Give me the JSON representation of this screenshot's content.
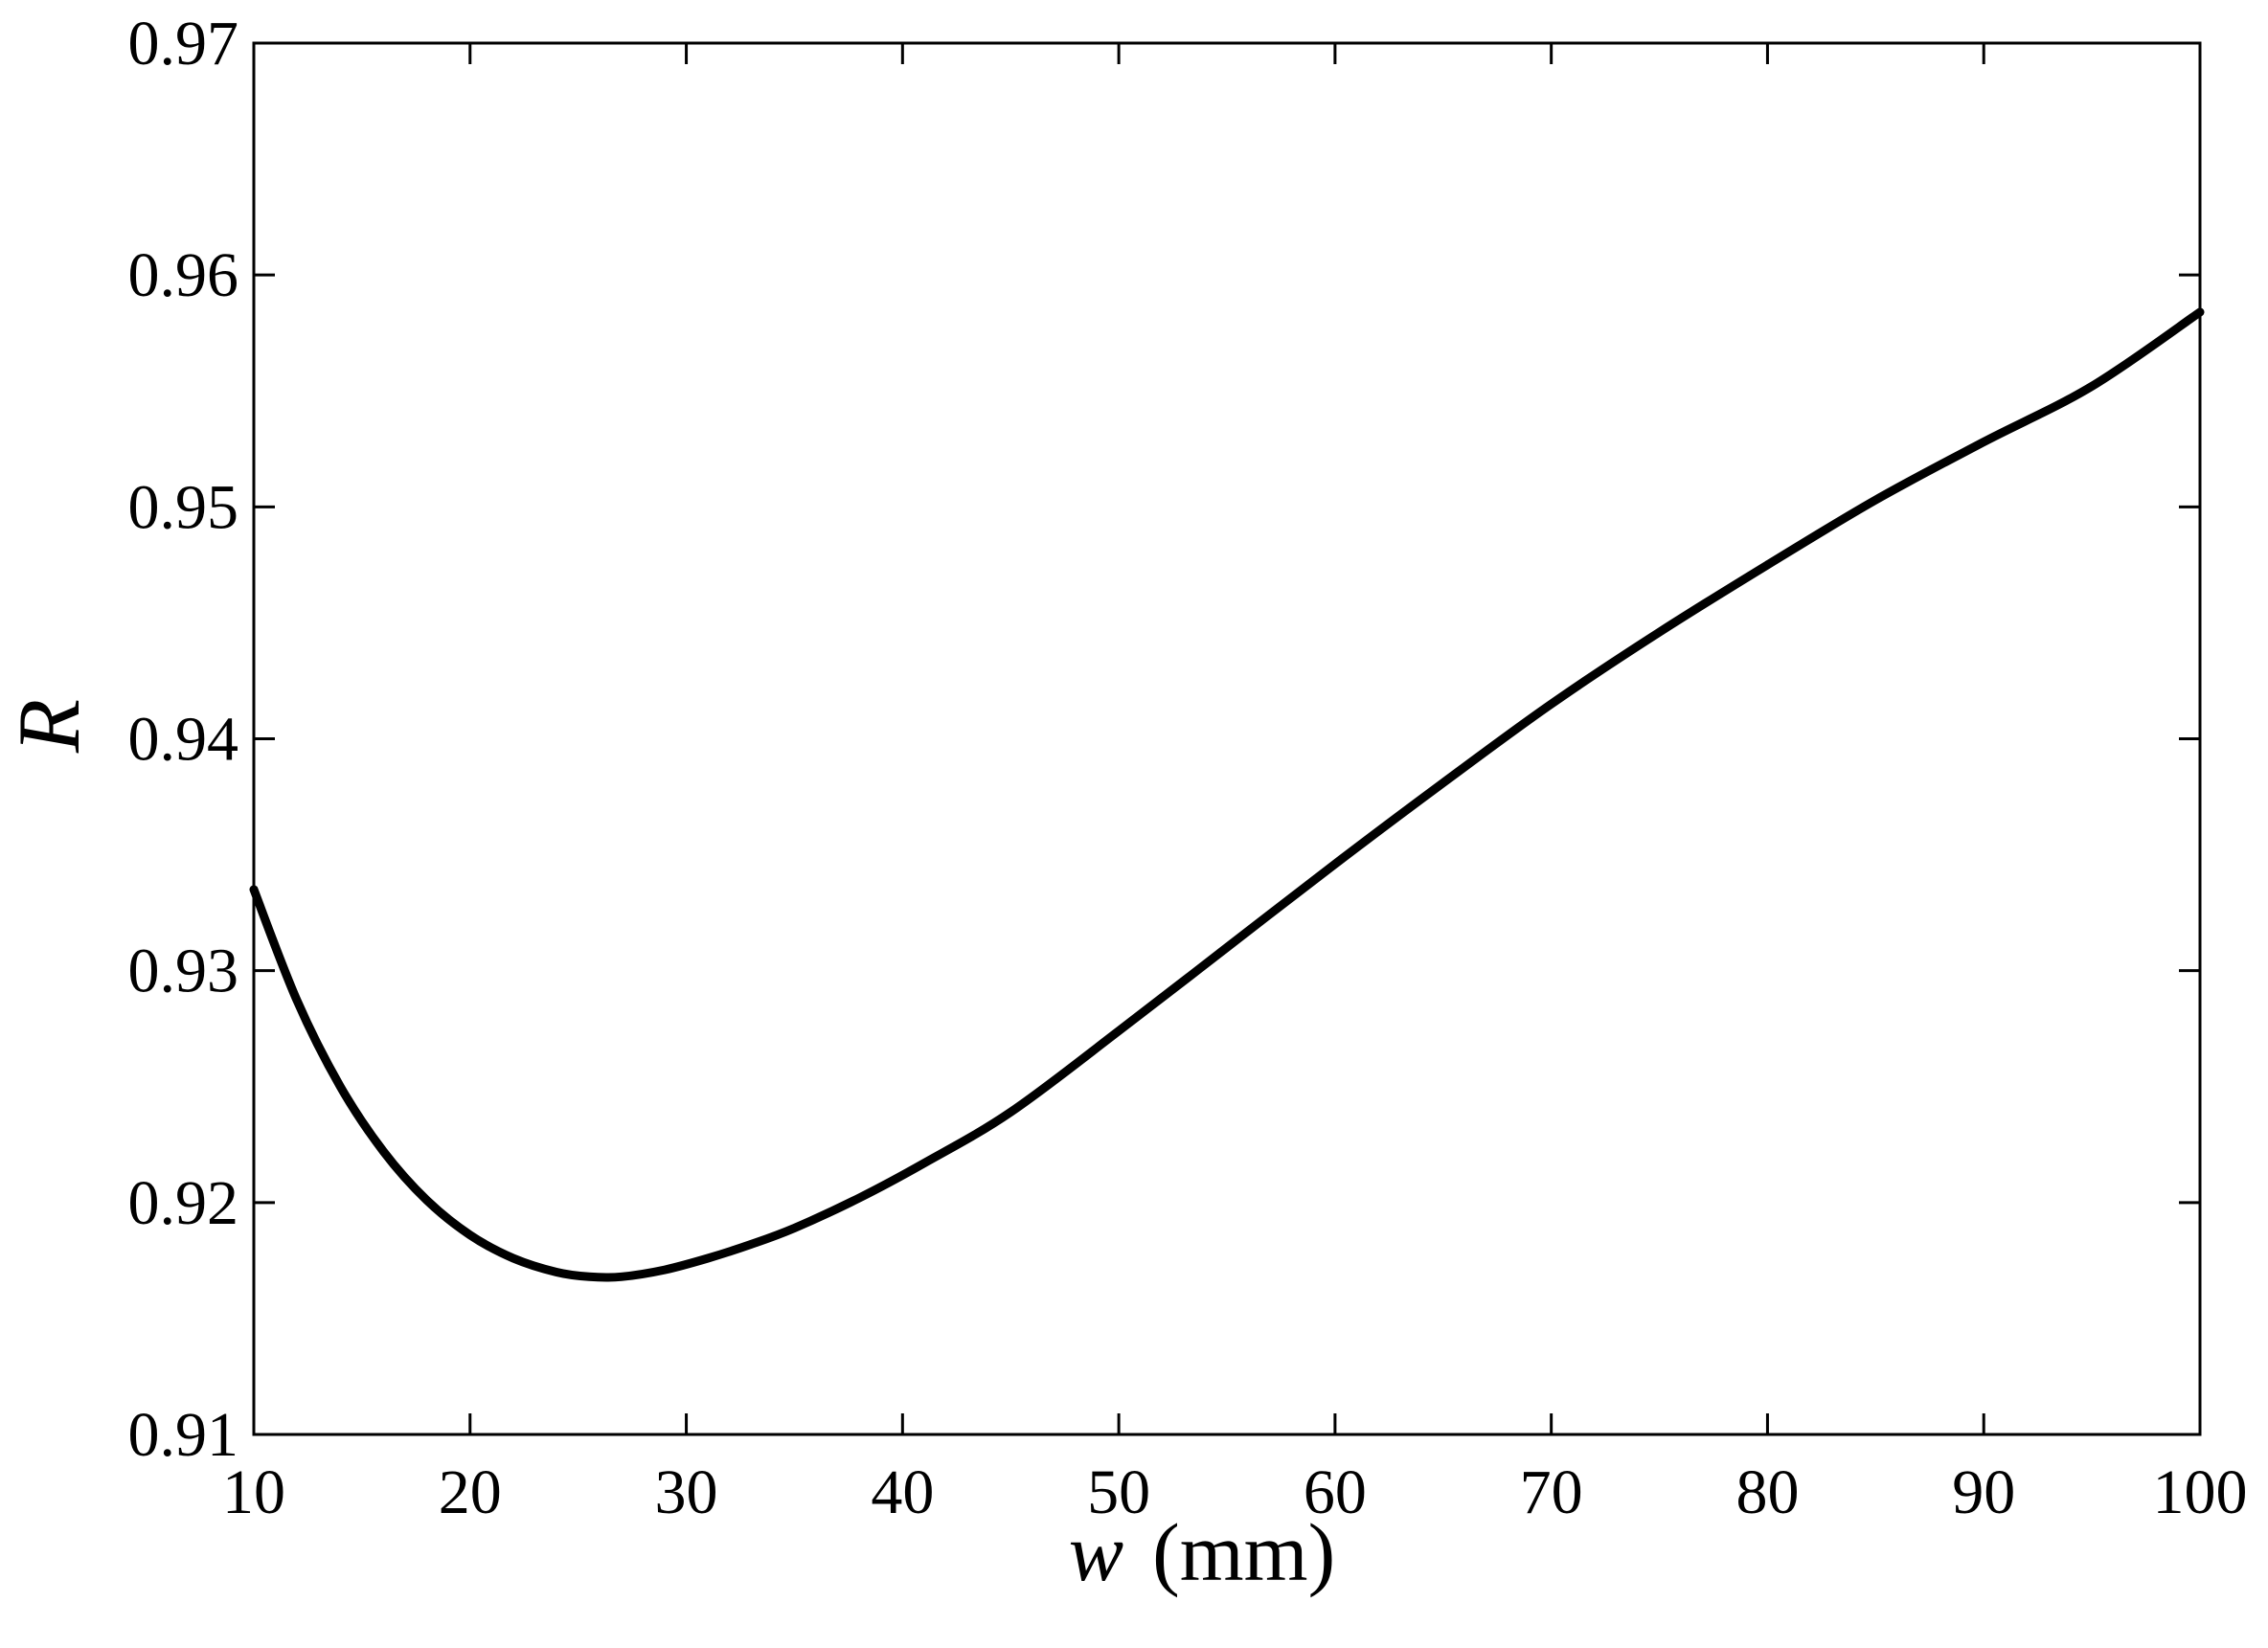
{
  "chart_data": {
    "type": "line",
    "title": "",
    "xlabel_var": "w",
    "xlabel_unit": "(mm)",
    "ylabel": "R",
    "xlim": [
      10,
      100
    ],
    "ylim": [
      0.91,
      0.97
    ],
    "xticks": [
      10,
      20,
      30,
      40,
      50,
      60,
      70,
      80,
      90,
      100
    ],
    "yticks": [
      0.91,
      0.92,
      0.93,
      0.94,
      0.95,
      0.96,
      0.97
    ],
    "xtick_labels": [
      "10",
      "20",
      "30",
      "40",
      "50",
      "60",
      "70",
      "80",
      "90",
      "100"
    ],
    "ytick_labels": [
      "0.91",
      "0.92",
      "0.93",
      "0.94",
      "0.95",
      "0.96",
      "0.97"
    ],
    "grid": false,
    "line_color": "#000000",
    "series": [
      {
        "x": [
          10,
          12,
          14,
          16,
          18,
          20,
          22,
          24,
          25.5,
          27,
          29,
          31,
          33,
          35,
          38,
          41,
          45,
          50,
          55,
          60,
          65,
          70,
          75,
          80,
          85,
          90,
          95,
          100
        ],
        "y": [
          0.9335,
          0.9287,
          0.925,
          0.9222,
          0.9201,
          0.9186,
          0.9176,
          0.917,
          0.9168,
          0.9168,
          0.9171,
          0.9176,
          0.9182,
          0.9189,
          0.9202,
          0.9217,
          0.9239,
          0.9274,
          0.931,
          0.9346,
          0.9381,
          0.9415,
          0.9446,
          0.9475,
          0.9503,
          0.9528,
          0.9552,
          0.9584
        ]
      }
    ]
  }
}
